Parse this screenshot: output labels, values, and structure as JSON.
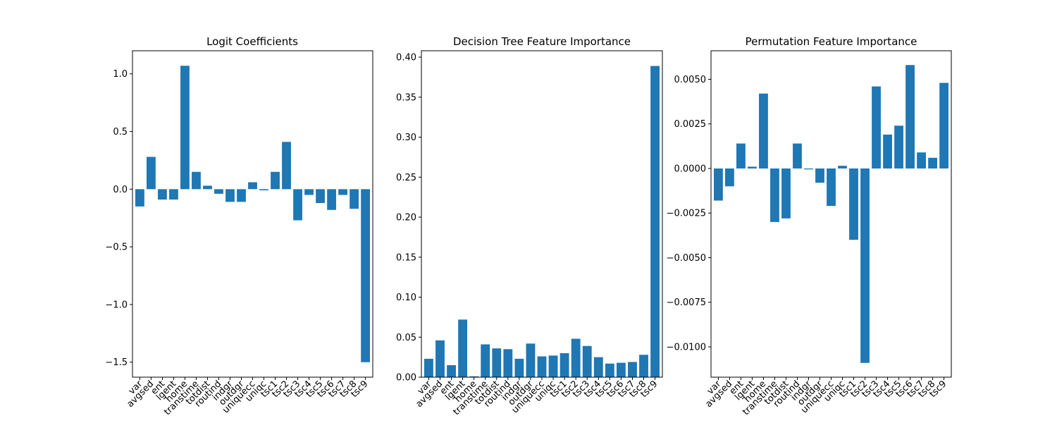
{
  "figure": {
    "bar_color": "#1f77b4"
  },
  "chart_data": [
    {
      "type": "bar",
      "title": "Logit Coefficients",
      "categories": [
        "var",
        "avgsed",
        "ent",
        "lgent",
        "home",
        "transtime",
        "totdist",
        "routind",
        "indgr",
        "outdgr",
        "uniquecc",
        "uniqc",
        "tsc1",
        "tsc2",
        "tsc3",
        "tsc4",
        "tsc5",
        "tsc6",
        "tsc7",
        "tsc8",
        "tsc9"
      ],
      "values": [
        -0.15,
        0.28,
        -0.09,
        -0.09,
        1.07,
        0.15,
        0.03,
        -0.04,
        -0.11,
        -0.11,
        0.06,
        -0.01,
        0.15,
        0.41,
        -0.27,
        -0.05,
        -0.12,
        -0.18,
        -0.05,
        -0.17,
        -1.5
      ],
      "ylim": [
        -1.63,
        1.2
      ],
      "yticks": [
        1.0,
        0.5,
        0.0,
        -0.5,
        -1.0,
        -1.5
      ],
      "ytick_labels": [
        "1.0",
        "0.5",
        "0.0",
        "−0.5",
        "−1.0",
        "−1.5"
      ],
      "grid": false
    },
    {
      "type": "bar",
      "title": "Decision Tree Feature Importance",
      "categories": [
        "var",
        "avgsed",
        "ent",
        "lgent",
        "home",
        "transtime",
        "totdist",
        "routind",
        "indgr",
        "outdgr",
        "uniquecc",
        "uniqc",
        "tsc1",
        "tsc2",
        "tsc3",
        "tsc4",
        "tsc5",
        "tsc6",
        "tsc7",
        "tsc8",
        "tsc9"
      ],
      "values": [
        0.023,
        0.046,
        0.015,
        0.072,
        0.001,
        0.041,
        0.036,
        0.035,
        0.023,
        0.042,
        0.026,
        0.027,
        0.03,
        0.048,
        0.039,
        0.025,
        0.017,
        0.018,
        0.019,
        0.028,
        0.389
      ],
      "ylim": [
        0.0,
        0.408
      ],
      "yticks": [
        0.0,
        0.05,
        0.1,
        0.15,
        0.2,
        0.25,
        0.3,
        0.35,
        0.4
      ],
      "ytick_labels": [
        "0.00",
        "0.05",
        "0.10",
        "0.15",
        "0.20",
        "0.25",
        "0.30",
        "0.35",
        "0.40"
      ],
      "grid": false
    },
    {
      "type": "bar",
      "title": "Permutation Feature Importance",
      "categories": [
        "var",
        "avgsed",
        "ent",
        "lgent",
        "home",
        "transtime",
        "totdist",
        "routind",
        "indgr",
        "outdgr",
        "uniquecc",
        "uniqc",
        "tsc1",
        "tsc2",
        "tsc3",
        "tsc4",
        "tsc5",
        "tsc6",
        "tsc7",
        "tsc8",
        "tsc9"
      ],
      "values": [
        -0.0018,
        -0.001,
        0.0014,
        0.0001,
        0.0042,
        -0.003,
        -0.0028,
        0.0014,
        -5e-05,
        -0.0008,
        -0.0021,
        0.00015,
        -0.004,
        -0.0109,
        0.0046,
        0.0019,
        0.0024,
        0.0058,
        0.0009,
        0.0006,
        0.0048
      ],
      "ylim": [
        -0.0117,
        0.0066
      ],
      "yticks": [
        0.005,
        0.0025,
        0.0,
        -0.0025,
        -0.005,
        -0.0075,
        -0.01
      ],
      "ytick_labels": [
        "0.0050",
        "0.0025",
        "0.0000",
        "−0.0025",
        "−0.0050",
        "−0.0075",
        "−0.0100"
      ],
      "grid": false
    }
  ]
}
